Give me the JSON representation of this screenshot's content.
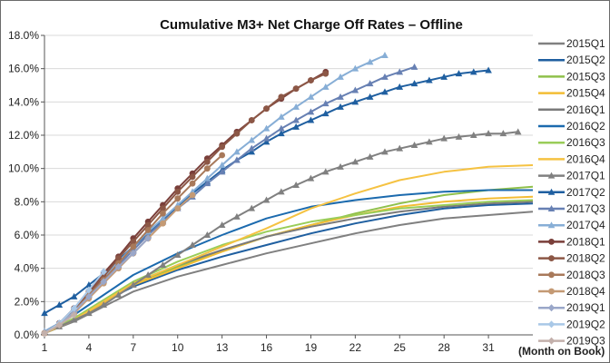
{
  "chart_data": {
    "type": "line",
    "title": "Cumulative M3+ Net Charge Off Rates – Offline",
    "xlabel": "(Month on Book)",
    "ylabel": "",
    "xlim": [
      1,
      34
    ],
    "ylim": [
      0,
      18
    ],
    "xticks": [
      1,
      4,
      7,
      10,
      13,
      16,
      19,
      22,
      25,
      28,
      31
    ],
    "yticks": [
      0,
      2,
      4,
      6,
      8,
      10,
      12,
      14,
      16,
      18
    ],
    "ytick_format": "percent_1dp",
    "grid": "horizontal",
    "legend_position": "right",
    "series": [
      {
        "name": "2015Q1",
        "color": "#808080",
        "marker": "none",
        "points": [
          [
            1,
            0.1
          ],
          [
            3,
            0.8
          ],
          [
            5,
            1.7
          ],
          [
            7,
            2.6
          ],
          [
            10,
            3.5
          ],
          [
            13,
            4.2
          ],
          [
            16,
            4.9
          ],
          [
            19,
            5.5
          ],
          [
            22,
            6.1
          ],
          [
            25,
            6.6
          ],
          [
            28,
            7.0
          ],
          [
            31,
            7.2
          ],
          [
            34,
            7.4
          ]
        ]
      },
      {
        "name": "2015Q2",
        "color": "#1f5fa0",
        "marker": "none",
        "points": [
          [
            1,
            0.1
          ],
          [
            3,
            0.9
          ],
          [
            5,
            2.0
          ],
          [
            7,
            2.9
          ],
          [
            10,
            3.9
          ],
          [
            13,
            4.7
          ],
          [
            16,
            5.4
          ],
          [
            19,
            6.1
          ],
          [
            22,
            6.7
          ],
          [
            25,
            7.2
          ],
          [
            28,
            7.6
          ],
          [
            31,
            7.8
          ],
          [
            34,
            7.9
          ]
        ]
      },
      {
        "name": "2015Q3",
        "color": "#8fc04b",
        "marker": "none",
        "points": [
          [
            1,
            0.1
          ],
          [
            3,
            0.9
          ],
          [
            5,
            1.9
          ],
          [
            7,
            3.0
          ],
          [
            10,
            4.1
          ],
          [
            13,
            5.0
          ],
          [
            16,
            5.9
          ],
          [
            19,
            6.6
          ],
          [
            22,
            7.3
          ],
          [
            25,
            7.9
          ],
          [
            28,
            8.4
          ],
          [
            31,
            8.7
          ],
          [
            34,
            8.9
          ]
        ]
      },
      {
        "name": "2015Q4",
        "color": "#f3bd35",
        "marker": "none",
        "points": [
          [
            1,
            0.1
          ],
          [
            3,
            0.9
          ],
          [
            5,
            1.9
          ],
          [
            7,
            3.0
          ],
          [
            10,
            4.0
          ],
          [
            13,
            5.0
          ],
          [
            16,
            5.9
          ],
          [
            19,
            6.6
          ],
          [
            22,
            7.2
          ],
          [
            25,
            7.7
          ],
          [
            28,
            8.0
          ],
          [
            31,
            8.2
          ],
          [
            34,
            8.3
          ]
        ]
      },
      {
        "name": "2016Q1",
        "color": "#7a7a7a",
        "marker": "none",
        "points": [
          [
            1,
            0.1
          ],
          [
            3,
            1.0
          ],
          [
            5,
            2.0
          ],
          [
            7,
            3.1
          ],
          [
            10,
            4.2
          ],
          [
            13,
            5.1
          ],
          [
            16,
            5.9
          ],
          [
            19,
            6.5
          ],
          [
            22,
            7.0
          ],
          [
            25,
            7.4
          ],
          [
            28,
            7.7
          ],
          [
            31,
            7.9
          ],
          [
            34,
            8.0
          ]
        ]
      },
      {
        "name": "2016Q2",
        "color": "#1b6aae",
        "marker": "none",
        "points": [
          [
            1,
            0.2
          ],
          [
            3,
            1.2
          ],
          [
            5,
            2.4
          ],
          [
            7,
            3.6
          ],
          [
            10,
            4.9
          ],
          [
            13,
            6.0
          ],
          [
            16,
            7.0
          ],
          [
            19,
            7.7
          ],
          [
            22,
            8.1
          ],
          [
            25,
            8.4
          ],
          [
            28,
            8.6
          ],
          [
            31,
            8.7
          ],
          [
            34,
            8.7
          ]
        ]
      },
      {
        "name": "2016Q3",
        "color": "#9acd59",
        "marker": "none",
        "points": [
          [
            1,
            0.1
          ],
          [
            3,
            1.0
          ],
          [
            5,
            2.1
          ],
          [
            7,
            3.2
          ],
          [
            10,
            4.4
          ],
          [
            13,
            5.4
          ],
          [
            16,
            6.2
          ],
          [
            19,
            6.8
          ],
          [
            22,
            7.2
          ],
          [
            25,
            7.6
          ],
          [
            28,
            7.8
          ],
          [
            31,
            8.0
          ],
          [
            34,
            8.1
          ]
        ]
      },
      {
        "name": "2016Q4",
        "color": "#f5c242",
        "marker": "none",
        "points": [
          [
            1,
            0.1
          ],
          [
            3,
            0.9
          ],
          [
            5,
            2.0
          ],
          [
            7,
            3.1
          ],
          [
            10,
            4.2
          ],
          [
            13,
            5.3
          ],
          [
            16,
            6.4
          ],
          [
            19,
            7.6
          ],
          [
            22,
            8.5
          ],
          [
            25,
            9.3
          ],
          [
            28,
            9.8
          ],
          [
            31,
            10.1
          ],
          [
            34,
            10.2
          ]
        ]
      },
      {
        "name": "2017Q1",
        "color": "#808080",
        "marker": "triangle",
        "points": [
          [
            1,
            0.2
          ],
          [
            2,
            0.5
          ],
          [
            3,
            0.9
          ],
          [
            4,
            1.3
          ],
          [
            5,
            1.8
          ],
          [
            6,
            2.4
          ],
          [
            7,
            3.0
          ],
          [
            8,
            3.6
          ],
          [
            9,
            4.2
          ],
          [
            10,
            4.8
          ],
          [
            11,
            5.4
          ],
          [
            12,
            6.0
          ],
          [
            13,
            6.6
          ],
          [
            14,
            7.1
          ],
          [
            15,
            7.6
          ],
          [
            16,
            8.1
          ],
          [
            17,
            8.6
          ],
          [
            18,
            9.0
          ],
          [
            19,
            9.4
          ],
          [
            20,
            9.8
          ],
          [
            21,
            10.1
          ],
          [
            22,
            10.4
          ],
          [
            23,
            10.7
          ],
          [
            24,
            11.0
          ],
          [
            25,
            11.2
          ],
          [
            26,
            11.4
          ],
          [
            27,
            11.6
          ],
          [
            28,
            11.8
          ],
          [
            29,
            11.9
          ],
          [
            30,
            12.0
          ],
          [
            31,
            12.1
          ],
          [
            32,
            12.1
          ],
          [
            33,
            12.2
          ]
        ]
      },
      {
        "name": "2017Q2",
        "color": "#1f5fa0",
        "marker": "triangle",
        "points": [
          [
            1,
            1.3
          ],
          [
            2,
            1.8
          ],
          [
            3,
            2.3
          ],
          [
            4,
            3.0
          ],
          [
            5,
            3.7
          ],
          [
            6,
            4.5
          ],
          [
            7,
            5.3
          ],
          [
            8,
            6.1
          ],
          [
            9,
            6.9
          ],
          [
            10,
            7.7
          ],
          [
            11,
            8.5
          ],
          [
            12,
            9.2
          ],
          [
            13,
            9.9
          ],
          [
            14,
            10.5
          ],
          [
            15,
            11.0
          ],
          [
            16,
            11.6
          ],
          [
            17,
            12.1
          ],
          [
            18,
            12.5
          ],
          [
            19,
            12.9
          ],
          [
            20,
            13.3
          ],
          [
            21,
            13.7
          ],
          [
            22,
            14.0
          ],
          [
            23,
            14.3
          ],
          [
            24,
            14.6
          ],
          [
            25,
            14.9
          ],
          [
            26,
            15.1
          ],
          [
            27,
            15.3
          ],
          [
            28,
            15.5
          ],
          [
            29,
            15.7
          ],
          [
            30,
            15.8
          ],
          [
            31,
            15.9
          ]
        ]
      },
      {
        "name": "2017Q3",
        "color": "#6780b3",
        "marker": "triangle",
        "points": [
          [
            1,
            0.2
          ],
          [
            2,
            0.7
          ],
          [
            3,
            1.5
          ],
          [
            4,
            2.4
          ],
          [
            5,
            3.3
          ],
          [
            6,
            4.2
          ],
          [
            7,
            5.1
          ],
          [
            8,
            6.0
          ],
          [
            9,
            6.8
          ],
          [
            10,
            7.6
          ],
          [
            11,
            8.3
          ],
          [
            12,
            9.1
          ],
          [
            13,
            9.8
          ],
          [
            14,
            10.5
          ],
          [
            15,
            11.2
          ],
          [
            16,
            11.8
          ],
          [
            17,
            12.4
          ],
          [
            18,
            12.9
          ],
          [
            19,
            13.4
          ],
          [
            20,
            13.9
          ],
          [
            21,
            14.3
          ],
          [
            22,
            14.7
          ],
          [
            23,
            15.1
          ],
          [
            24,
            15.5
          ],
          [
            25,
            15.8
          ],
          [
            26,
            16.1
          ]
        ]
      },
      {
        "name": "2017Q4",
        "color": "#87aed6",
        "marker": "triangle",
        "points": [
          [
            1,
            0.2
          ],
          [
            2,
            0.7
          ],
          [
            3,
            1.5
          ],
          [
            4,
            2.4
          ],
          [
            5,
            3.4
          ],
          [
            6,
            4.4
          ],
          [
            7,
            5.3
          ],
          [
            8,
            6.2
          ],
          [
            9,
            7.0
          ],
          [
            10,
            7.8
          ],
          [
            11,
            8.6
          ],
          [
            12,
            9.4
          ],
          [
            13,
            10.2
          ],
          [
            14,
            11.0
          ],
          [
            15,
            11.7
          ],
          [
            16,
            12.4
          ],
          [
            17,
            13.1
          ],
          [
            18,
            13.7
          ],
          [
            19,
            14.3
          ],
          [
            20,
            14.9
          ],
          [
            21,
            15.5
          ],
          [
            22,
            16.0
          ],
          [
            23,
            16.4
          ],
          [
            24,
            16.8
          ]
        ]
      },
      {
        "name": "2018Q1",
        "color": "#7a3f3a",
        "marker": "circle",
        "points": [
          [
            1,
            0.1
          ],
          [
            2,
            0.7
          ],
          [
            3,
            1.6
          ],
          [
            4,
            2.6
          ],
          [
            5,
            3.7
          ],
          [
            6,
            4.7
          ],
          [
            7,
            5.8
          ],
          [
            8,
            6.8
          ],
          [
            9,
            7.8
          ],
          [
            10,
            8.8
          ],
          [
            11,
            9.7
          ],
          [
            12,
            10.6
          ],
          [
            13,
            11.4
          ],
          [
            14,
            12.2
          ],
          [
            15,
            12.9
          ],
          [
            16,
            13.6
          ],
          [
            17,
            14.2
          ],
          [
            18,
            14.8
          ],
          [
            19,
            15.3
          ],
          [
            20,
            15.8
          ]
        ]
      },
      {
        "name": "2018Q2",
        "color": "#8c5746",
        "marker": "circle",
        "points": [
          [
            1,
            0.1
          ],
          [
            2,
            0.6
          ],
          [
            3,
            1.5
          ],
          [
            4,
            2.5
          ],
          [
            5,
            3.5
          ],
          [
            6,
            4.6
          ],
          [
            7,
            5.6
          ],
          [
            8,
            6.6
          ],
          [
            9,
            7.6
          ],
          [
            10,
            8.6
          ],
          [
            11,
            9.5
          ],
          [
            12,
            10.4
          ],
          [
            13,
            11.3
          ],
          [
            14,
            12.1
          ],
          [
            15,
            12.9
          ],
          [
            16,
            13.6
          ],
          [
            17,
            14.3
          ],
          [
            18,
            14.8
          ],
          [
            19,
            15.3
          ],
          [
            20,
            15.7
          ]
        ]
      },
      {
        "name": "2018Q3",
        "color": "#a8795a",
        "marker": "circle",
        "points": [
          [
            1,
            0.1
          ],
          [
            2,
            0.6
          ],
          [
            3,
            1.4
          ],
          [
            4,
            2.4
          ],
          [
            5,
            3.3
          ],
          [
            6,
            4.3
          ],
          [
            7,
            5.3
          ],
          [
            8,
            6.3
          ],
          [
            9,
            7.3
          ],
          [
            10,
            8.2
          ],
          [
            11,
            9.1
          ],
          [
            12,
            10.0
          ],
          [
            13,
            10.8
          ]
        ]
      },
      {
        "name": "2018Q4",
        "color": "#c49a74",
        "marker": "circle",
        "points": [
          [
            1,
            0.1
          ],
          [
            2,
            0.6
          ],
          [
            3,
            1.3
          ],
          [
            4,
            2.2
          ],
          [
            5,
            3.1
          ],
          [
            6,
            4.0
          ],
          [
            7,
            4.9
          ],
          [
            8,
            5.8
          ],
          [
            9,
            6.7
          ],
          [
            10,
            7.6
          ],
          [
            11,
            8.4
          ]
        ]
      },
      {
        "name": "2019Q1",
        "color": "#9aa7c9",
        "marker": "diamond",
        "points": [
          [
            1,
            0.1
          ],
          [
            2,
            0.6
          ],
          [
            3,
            1.4
          ],
          [
            4,
            2.3
          ],
          [
            5,
            3.2
          ],
          [
            6,
            4.1
          ],
          [
            7,
            4.9
          ],
          [
            8,
            5.8
          ]
        ]
      },
      {
        "name": "2019Q2",
        "color": "#a9c8e7",
        "marker": "diamond",
        "points": [
          [
            1,
            0.1
          ],
          [
            2,
            0.7
          ],
          [
            3,
            1.6
          ],
          [
            4,
            2.7
          ],
          [
            5,
            3.8
          ]
        ]
      },
      {
        "name": "2019Q3",
        "color": "#c3b0ab",
        "marker": "diamond",
        "points": [
          [
            1,
            0.1
          ],
          [
            2,
            0.6
          ],
          [
            3,
            1.2
          ]
        ]
      }
    ]
  }
}
